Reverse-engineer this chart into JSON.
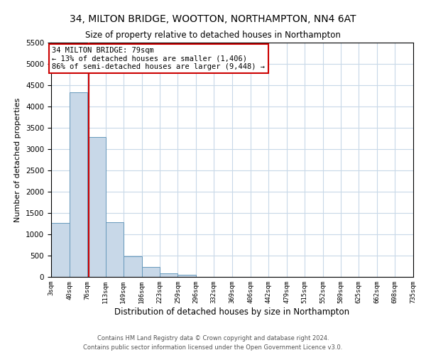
{
  "title": "34, MILTON BRIDGE, WOOTTON, NORTHAMPTON, NN4 6AT",
  "subtitle": "Size of property relative to detached houses in Northampton",
  "xlabel": "Distribution of detached houses by size in Northampton",
  "ylabel": "Number of detached properties",
  "footnote1": "Contains HM Land Registry data © Crown copyright and database right 2024.",
  "footnote2": "Contains public sector information licensed under the Open Government Licence v3.0.",
  "bin_edges": [
    3,
    40,
    76,
    113,
    149,
    186,
    223,
    259,
    296,
    332,
    369,
    406,
    442,
    479,
    515,
    552,
    589,
    625,
    662,
    698,
    735
  ],
  "bin_labels": [
    "3sqm",
    "40sqm",
    "76sqm",
    "113sqm",
    "149sqm",
    "186sqm",
    "223sqm",
    "259sqm",
    "296sqm",
    "332sqm",
    "369sqm",
    "406sqm",
    "442sqm",
    "479sqm",
    "515sqm",
    "552sqm",
    "589sqm",
    "625sqm",
    "662sqm",
    "698sqm",
    "735sqm"
  ],
  "bar_heights": [
    1270,
    4340,
    3280,
    1290,
    490,
    240,
    80,
    50,
    0,
    0,
    0,
    0,
    0,
    0,
    0,
    0,
    0,
    0,
    0,
    0
  ],
  "bar_color": "#c8d8e8",
  "bar_edge_color": "#6699bb",
  "property_line_x": 79,
  "property_line_color": "#cc0000",
  "annotation_line1": "34 MILTON BRIDGE: 79sqm",
  "annotation_line2": "← 13% of detached houses are smaller (1,406)",
  "annotation_line3": "86% of semi-detached houses are larger (9,448) →",
  "annotation_box_edge_color": "#cc0000",
  "ylim": [
    0,
    5500
  ],
  "yticks": [
    0,
    500,
    1000,
    1500,
    2000,
    2500,
    3000,
    3500,
    4000,
    4500,
    5000,
    5500
  ],
  "background_color": "#ffffff",
  "grid_color": "#c8d8e8",
  "title_fontsize": 10,
  "subtitle_fontsize": 8.5,
  "ylabel_fontsize": 8,
  "xlabel_fontsize": 8.5,
  "footnote_fontsize": 6,
  "annotation_fontsize": 7.5
}
